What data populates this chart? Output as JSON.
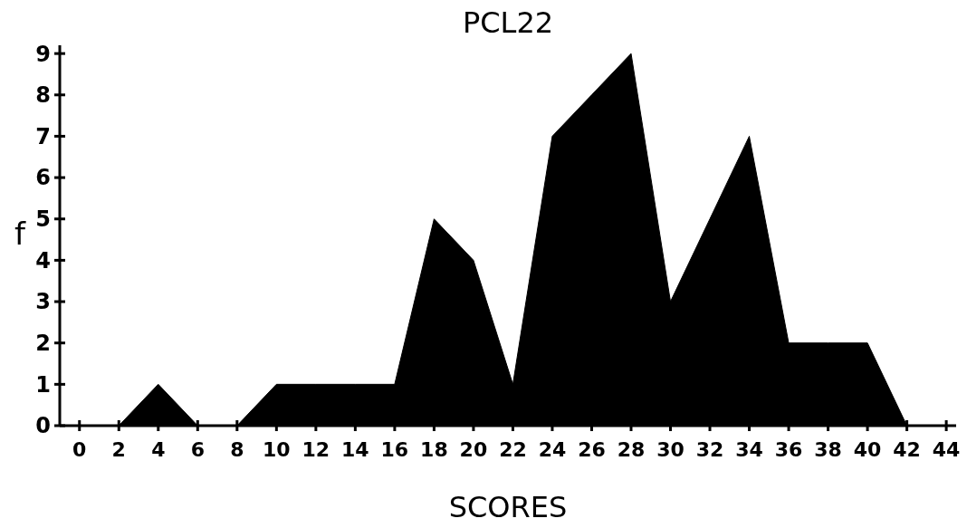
{
  "chart_data": {
    "type": "area",
    "title": "PCL22",
    "xlabel": "SCORES",
    "ylabel": "f",
    "x": [
      0,
      2,
      4,
      6,
      8,
      10,
      12,
      14,
      16,
      18,
      20,
      22,
      24,
      26,
      28,
      30,
      32,
      34,
      36,
      38,
      40,
      42,
      44
    ],
    "series": [
      {
        "color": "#000000",
        "values": [
          0,
          0,
          1,
          0,
          0,
          1,
          1,
          1,
          1,
          5,
          4,
          1,
          7,
          8,
          9,
          3,
          5,
          7,
          2,
          2,
          2,
          0,
          0
        ]
      }
    ],
    "xlim": [
      -1,
      44.5
    ],
    "xticks": [
      0,
      2,
      4,
      6,
      8,
      10,
      12,
      14,
      16,
      18,
      20,
      22,
      24,
      26,
      28,
      30,
      32,
      34,
      36,
      38,
      40,
      42,
      44
    ],
    "ylim": [
      0,
      9.2
    ],
    "yticks": [
      0,
      1,
      2,
      3,
      4,
      5,
      6,
      7,
      8,
      9
    ],
    "grid": false
  }
}
